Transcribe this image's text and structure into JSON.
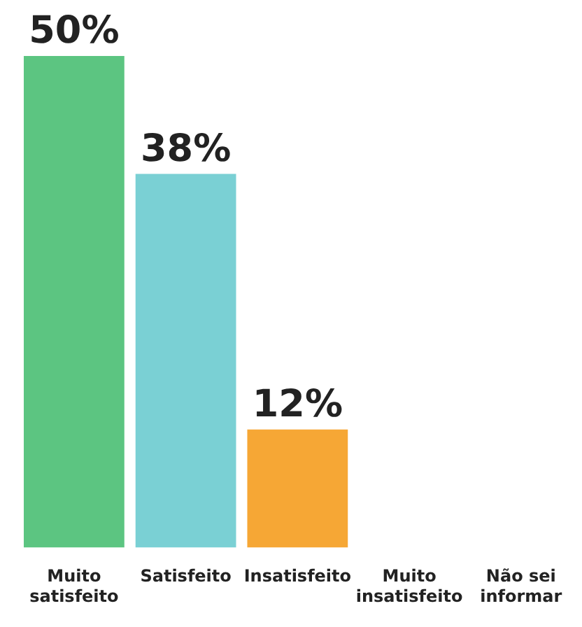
{
  "chart_data": {
    "type": "bar",
    "categories": [
      "Muito satisfeito",
      "Satisfeito",
      "Insatisfeito",
      "Muito insatisfeito",
      "Não sei informar"
    ],
    "values": [
      50,
      38,
      12,
      null,
      null
    ],
    "colors": [
      "#5cc581",
      "#7ad0d4",
      "#f6a735",
      "#5cc581",
      "#5cc581"
    ],
    "value_labels": [
      "50%",
      "38%",
      "12%",
      null,
      null
    ],
    "grid": false,
    "legend": false
  }
}
